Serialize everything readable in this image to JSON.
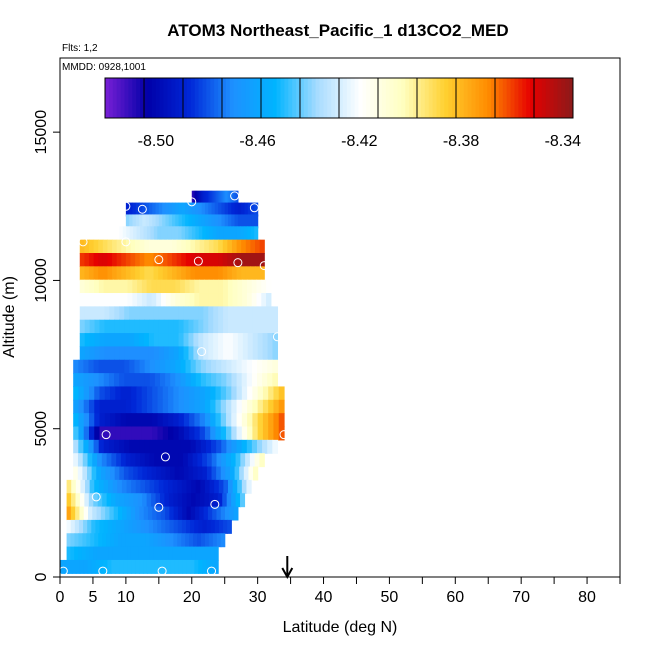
{
  "chart_data": {
    "type": "heatmap",
    "title": "ATOM3 Northeast_Pacific_1 d13CO2_MED",
    "flights_text": "Flts: 1,2",
    "date_text": "MMDD: 0928,1001",
    "xlabel": "Latitude (deg N)",
    "ylabel": "Altitude (m)",
    "xlim": [
      0,
      85
    ],
    "ylim": [
      0,
      17500
    ],
    "x_ticks_major": [
      0,
      5,
      10,
      20,
      30,
      40,
      50,
      60,
      70,
      80
    ],
    "x_ticks_minor": [
      15,
      25,
      35,
      45,
      55,
      65,
      75,
      85
    ],
    "y_ticks": [
      0,
      5000,
      10000,
      15000
    ],
    "colorbar": {
      "min": -8.52,
      "max": -8.336,
      "tick_values": [
        -8.5,
        -8.46,
        -8.42,
        -8.38,
        -8.34
      ],
      "tick_labels": [
        "-8.50",
        "-8.46",
        "-8.42",
        "-8.38",
        "-8.34"
      ],
      "colors": [
        "#7a1fd6",
        "#0000a8",
        "#0028d8",
        "#1e90ff",
        "#00b4ff",
        "#a8dcff",
        "#ffffff",
        "#ffffc0",
        "#ffd030",
        "#ff8c00",
        "#e60000",
        "#8b1a1a"
      ]
    },
    "marker_latitude": 34.5,
    "rows": [
      {
        "alt": 12800,
        "lat0": 20,
        "lat1": 27,
        "vals": [
          -8.51,
          -8.49,
          -8.48,
          -8.47,
          -8.48
        ]
      },
      {
        "alt": 12400,
        "lat0": 10,
        "lat1": 30,
        "vals": [
          -8.49,
          -8.48,
          -8.47,
          -8.46,
          -8.47,
          -8.48,
          -8.49,
          -8.48
        ]
      },
      {
        "alt": 12000,
        "lat0": 10,
        "lat1": 30,
        "vals": [
          -8.44,
          -8.43,
          -8.44,
          -8.45,
          -8.46,
          -8.47,
          -8.48,
          -8.48
        ]
      },
      {
        "alt": 11600,
        "lat0": 9,
        "lat1": 30,
        "vals": [
          -8.42,
          -8.43,
          -8.44,
          -8.44,
          -8.45,
          -8.46,
          -8.46,
          -8.45
        ]
      },
      {
        "alt": 11150,
        "lat0": 3,
        "lat1": 31,
        "vals": [
          -8.38,
          -8.39,
          -8.4,
          -8.41,
          -8.41,
          -8.4,
          -8.39,
          -8.37,
          -8.36
        ]
      },
      {
        "alt": 10700,
        "lat0": 3,
        "lat1": 31,
        "vals": [
          -8.36,
          -8.35,
          -8.36,
          -8.37,
          -8.36,
          -8.35,
          -8.35,
          -8.34,
          -8.34
        ]
      },
      {
        "alt": 10250,
        "lat0": 3,
        "lat1": 31,
        "vals": [
          -8.38,
          -8.37,
          -8.38,
          -8.39,
          -8.38,
          -8.37,
          -8.37,
          -8.38,
          -8.38
        ]
      },
      {
        "alt": 9800,
        "lat0": 3,
        "lat1": 32,
        "vals": [
          -8.41,
          -8.4,
          -8.4,
          -8.39,
          -8.39,
          -8.4,
          -8.4,
          -8.41,
          -8.42
        ]
      },
      {
        "alt": 9350,
        "lat0": 3,
        "lat1": 32,
        "vals": [
          -8.42,
          -8.42,
          -8.42,
          -8.43,
          -8.41,
          -8.4,
          -8.4,
          -8.41,
          -8.43
        ]
      },
      {
        "alt": 8900,
        "lat0": 3,
        "lat1": 33,
        "vals": [
          -8.43,
          -8.43,
          -8.44,
          -8.44,
          -8.44,
          -8.44,
          -8.43,
          -8.43,
          -8.43
        ]
      },
      {
        "alt": 8450,
        "lat0": 3,
        "lat1": 33,
        "vals": [
          -8.44,
          -8.45,
          -8.45,
          -8.45,
          -8.45,
          -8.44,
          -8.43,
          -8.43,
          -8.43
        ]
      },
      {
        "alt": 8000,
        "lat0": 3,
        "lat1": 33,
        "vals": [
          -8.45,
          -8.46,
          -8.46,
          -8.45,
          -8.45,
          -8.43,
          -8.42,
          -8.43,
          -8.44
        ]
      },
      {
        "alt": 7550,
        "lat0": 3,
        "lat1": 33,
        "vals": [
          -8.46,
          -8.47,
          -8.47,
          -8.47,
          -8.46,
          -8.43,
          -8.42,
          -8.43,
          -8.44
        ]
      },
      {
        "alt": 7100,
        "lat0": 2,
        "lat1": 33,
        "vals": [
          -8.47,
          -8.48,
          -8.48,
          -8.47,
          -8.46,
          -8.44,
          -8.43,
          -8.42,
          -8.41
        ]
      },
      {
        "alt": 6650,
        "lat0": 2,
        "lat1": 33,
        "vals": [
          -8.46,
          -8.47,
          -8.48,
          -8.48,
          -8.47,
          -8.45,
          -8.44,
          -8.42,
          -8.4
        ]
      },
      {
        "alt": 6200,
        "lat0": 2,
        "lat1": 34,
        "vals": [
          -8.45,
          -8.48,
          -8.49,
          -8.48,
          -8.47,
          -8.46,
          -8.44,
          -8.41,
          -8.38
        ]
      },
      {
        "alt": 5750,
        "lat0": 2,
        "lat1": 34,
        "vals": [
          -8.46,
          -8.49,
          -8.49,
          -8.48,
          -8.47,
          -8.46,
          -8.43,
          -8.4,
          -8.37
        ]
      },
      {
        "alt": 5300,
        "lat0": 2,
        "lat1": 34,
        "vals": [
          -8.45,
          -8.49,
          -8.5,
          -8.5,
          -8.49,
          -8.47,
          -8.43,
          -8.39,
          -8.36
        ]
      },
      {
        "alt": 4850,
        "lat0": 2,
        "lat1": 34,
        "vals": [
          -8.44,
          -8.51,
          -8.51,
          -8.51,
          -8.5,
          -8.48,
          -8.44,
          -8.39,
          -8.36
        ]
      },
      {
        "alt": 4400,
        "lat0": 2,
        "lat1": 33,
        "vals": [
          -8.43,
          -8.49,
          -8.5,
          -8.5,
          -8.5,
          -8.48,
          -8.45,
          -8.42
        ]
      },
      {
        "alt": 3950,
        "lat0": 2,
        "lat1": 31,
        "vals": [
          -8.42,
          -8.47,
          -8.49,
          -8.5,
          -8.5,
          -8.48,
          -8.45,
          -8.4
        ]
      },
      {
        "alt": 3500,
        "lat0": 2,
        "lat1": 30,
        "vals": [
          -8.41,
          -8.46,
          -8.48,
          -8.49,
          -8.5,
          -8.49,
          -8.46,
          -8.4
        ]
      },
      {
        "alt": 3050,
        "lat0": 1,
        "lat1": 29,
        "vals": [
          -8.39,
          -8.45,
          -8.47,
          -8.48,
          -8.49,
          -8.5,
          -8.48,
          -8.42
        ]
      },
      {
        "alt": 2600,
        "lat0": 1,
        "lat1": 28,
        "vals": [
          -8.38,
          -8.44,
          -8.46,
          -8.47,
          -8.49,
          -8.5,
          -8.49,
          -8.44
        ]
      },
      {
        "alt": 2150,
        "lat0": 1,
        "lat1": 27,
        "vals": [
          -8.37,
          -8.43,
          -8.45,
          -8.47,
          -8.48,
          -8.5,
          -8.48,
          -8.46
        ]
      },
      {
        "alt": 1700,
        "lat0": 1,
        "lat1": 26,
        "vals": [
          -8.42,
          -8.45,
          -8.46,
          -8.47,
          -8.48,
          -8.49,
          -8.48
        ]
      },
      {
        "alt": 1250,
        "lat0": 1,
        "lat1": 25,
        "vals": [
          -8.44,
          -8.45,
          -8.46,
          -8.46,
          -8.47,
          -8.48,
          -8.47
        ]
      },
      {
        "alt": 800,
        "lat0": 1,
        "lat1": 24,
        "vals": [
          -8.45,
          -8.46,
          -8.46,
          -8.46,
          -8.46,
          -8.46
        ]
      },
      {
        "alt": 350,
        "lat0": 0,
        "lat1": 24,
        "vals": [
          -8.46,
          -8.46,
          -8.45,
          -8.45,
          -8.45,
          -8.45,
          -8.46
        ]
      }
    ],
    "points": [
      {
        "lat": 10,
        "alt": 12500
      },
      {
        "lat": 12.5,
        "alt": 12400
      },
      {
        "lat": 20,
        "alt": 12650
      },
      {
        "lat": 26.5,
        "alt": 12850
      },
      {
        "lat": 29.5,
        "alt": 12450
      },
      {
        "lat": 3.5,
        "alt": 11300
      },
      {
        "lat": 10,
        "alt": 11300
      },
      {
        "lat": 15,
        "alt": 10700
      },
      {
        "lat": 21,
        "alt": 10650
      },
      {
        "lat": 27,
        "alt": 10600
      },
      {
        "lat": 31,
        "alt": 10500
      },
      {
        "lat": 33,
        "alt": 8100
      },
      {
        "lat": 21.5,
        "alt": 7600
      },
      {
        "lat": 7,
        "alt": 4800
      },
      {
        "lat": 34,
        "alt": 4800
      },
      {
        "lat": 16,
        "alt": 4050
      },
      {
        "lat": 5.5,
        "alt": 2700
      },
      {
        "lat": 15,
        "alt": 2350
      },
      {
        "lat": 23.5,
        "alt": 2450
      },
      {
        "lat": 0.5,
        "alt": 200
      },
      {
        "lat": 6.5,
        "alt": 200
      },
      {
        "lat": 15.5,
        "alt": 200
      },
      {
        "lat": 23,
        "alt": 200
      }
    ]
  }
}
